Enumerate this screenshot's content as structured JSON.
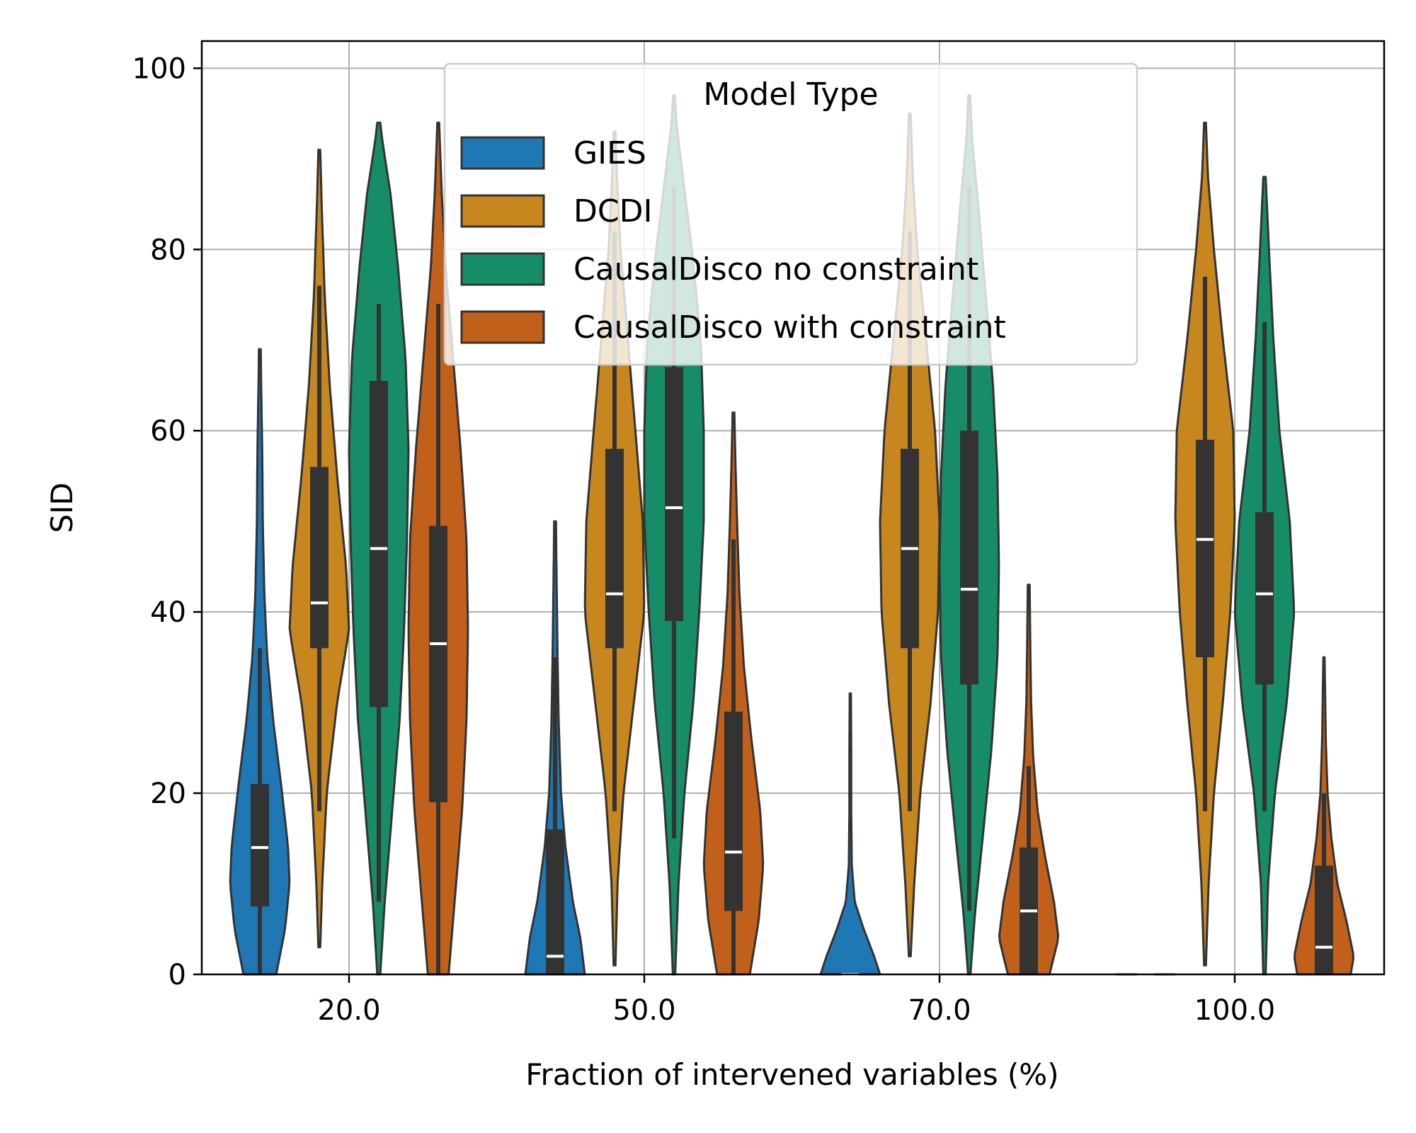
{
  "chart_data": {
    "type": "violin",
    "title": "",
    "xlabel": "Fraction of intervened variables (%)",
    "ylabel": "SID",
    "ylim": [
      0,
      103
    ],
    "yticks": [
      0,
      20,
      40,
      60,
      80,
      100
    ],
    "ytick_labels": [
      "0",
      "20",
      "40",
      "60",
      "80",
      "100"
    ],
    "categories": [
      "20.0",
      "50.0",
      "70.0",
      "100.0"
    ],
    "grid": true,
    "legend": {
      "title": "Model Type",
      "placement": "top-center",
      "entries": [
        "GIES",
        "DCDI",
        "CausalDisco no constraint",
        "CausalDisco with constraint"
      ]
    },
    "series": [
      {
        "name": "GIES",
        "color": "#1f77b4",
        "violins": [
          {
            "category": "20.0",
            "min": 0,
            "max": 69,
            "q1": 7.5,
            "median": 14,
            "q3": 21,
            "wlo": 0,
            "whi": 36,
            "density": [
              [
                0,
                0.55
              ],
              [
                5,
                0.85
              ],
              [
                10,
                1.0
              ],
              [
                14,
                0.95
              ],
              [
                20,
                0.75
              ],
              [
                28,
                0.45
              ],
              [
                35,
                0.25
              ],
              [
                42,
                0.15
              ],
              [
                50,
                0.1
              ],
              [
                58,
                0.08
              ],
              [
                64,
                0.05
              ],
              [
                69,
                0.03
              ]
            ]
          },
          {
            "category": "50.0",
            "min": 0,
            "max": 50,
            "q1": 0,
            "median": 2,
            "q3": 16,
            "wlo": 0,
            "whi": 35,
            "density": [
              [
                0,
                1.0
              ],
              [
                4,
                0.85
              ],
              [
                8,
                0.6
              ],
              [
                14,
                0.35
              ],
              [
                20,
                0.2
              ],
              [
                28,
                0.12
              ],
              [
                36,
                0.08
              ],
              [
                44,
                0.05
              ],
              [
                50,
                0.03
              ]
            ]
          },
          {
            "category": "70.0",
            "min": 0,
            "max": 31,
            "q1": 0,
            "median": 0,
            "q3": 0,
            "wlo": 0,
            "whi": 0,
            "density": [
              [
                0,
                1.0
              ],
              [
                2,
                0.8
              ],
              [
                5,
                0.45
              ],
              [
                8,
                0.15
              ],
              [
                12,
                0.05
              ],
              [
                18,
                0.03
              ],
              [
                25,
                0.03
              ],
              [
                31,
                0.02
              ]
            ]
          },
          {
            "category": "100.0",
            "min": 0,
            "max": 0,
            "q1": 0,
            "median": 0,
            "q3": 0,
            "wlo": 0,
            "whi": 0,
            "density": [
              [
                0,
                1.0
              ]
            ]
          }
        ]
      },
      {
        "name": "DCDI",
        "color": "#c8861e",
        "violins": [
          {
            "category": "20.0",
            "min": 3,
            "max": 91,
            "q1": 36,
            "median": 41,
            "q3": 56,
            "wlo": 18,
            "whi": 76,
            "density": [
              [
                3,
                0.03
              ],
              [
                10,
                0.1
              ],
              [
                20,
                0.25
              ],
              [
                30,
                0.6
              ],
              [
                38,
                1.0
              ],
              [
                45,
                0.9
              ],
              [
                55,
                0.6
              ],
              [
                65,
                0.35
              ],
              [
                75,
                0.18
              ],
              [
                85,
                0.08
              ],
              [
                91,
                0.03
              ]
            ]
          },
          {
            "category": "50.0",
            "min": 1,
            "max": 93,
            "q1": 36,
            "median": 42,
            "q3": 58,
            "wlo": 18,
            "whi": 82,
            "density": [
              [
                1,
                0.03
              ],
              [
                10,
                0.1
              ],
              [
                20,
                0.3
              ],
              [
                30,
                0.65
              ],
              [
                40,
                1.0
              ],
              [
                50,
                0.95
              ],
              [
                60,
                0.7
              ],
              [
                70,
                0.45
              ],
              [
                80,
                0.2
              ],
              [
                88,
                0.08
              ],
              [
                93,
                0.03
              ]
            ]
          },
          {
            "category": "70.0",
            "min": 2,
            "max": 95,
            "q1": 36,
            "median": 47,
            "q3": 58,
            "wlo": 18,
            "whi": 82,
            "density": [
              [
                2,
                0.03
              ],
              [
                10,
                0.15
              ],
              [
                20,
                0.35
              ],
              [
                30,
                0.7
              ],
              [
                40,
                0.95
              ],
              [
                50,
                1.0
              ],
              [
                60,
                0.85
              ],
              [
                70,
                0.55
              ],
              [
                80,
                0.25
              ],
              [
                88,
                0.1
              ],
              [
                95,
                0.03
              ]
            ]
          },
          {
            "category": "100.0",
            "min": 1,
            "max": 94,
            "q1": 35,
            "median": 48,
            "q3": 59,
            "wlo": 18,
            "whi": 77,
            "density": [
              [
                1,
                0.03
              ],
              [
                10,
                0.12
              ],
              [
                20,
                0.3
              ],
              [
                30,
                0.6
              ],
              [
                40,
                0.85
              ],
              [
                50,
                1.0
              ],
              [
                60,
                0.95
              ],
              [
                70,
                0.6
              ],
              [
                80,
                0.3
              ],
              [
                88,
                0.1
              ],
              [
                94,
                0.03
              ]
            ]
          }
        ]
      },
      {
        "name": "CausalDisco no constraint",
        "color": "#168c68",
        "violins": [
          {
            "category": "20.0",
            "min": 0,
            "max": 94,
            "q1": 29.5,
            "median": 47,
            "q3": 65.5,
            "wlo": 8,
            "whi": 74,
            "density": [
              [
                0,
                0.05
              ],
              [
                8,
                0.2
              ],
              [
                18,
                0.45
              ],
              [
                28,
                0.7
              ],
              [
                38,
                0.85
              ],
              [
                48,
                0.95
              ],
              [
                58,
                1.0
              ],
              [
                68,
                0.9
              ],
              [
                78,
                0.65
              ],
              [
                86,
                0.4
              ],
              [
                92,
                0.12
              ],
              [
                94,
                0.05
              ]
            ]
          },
          {
            "category": "50.0",
            "min": 0,
            "max": 97,
            "q1": 39,
            "median": 51.5,
            "q3": 67,
            "wlo": 15,
            "whi": 87,
            "density": [
              [
                0,
                0.04
              ],
              [
                10,
                0.15
              ],
              [
                20,
                0.35
              ],
              [
                30,
                0.65
              ],
              [
                40,
                0.85
              ],
              [
                50,
                1.0
              ],
              [
                60,
                1.0
              ],
              [
                70,
                0.9
              ],
              [
                80,
                0.6
              ],
              [
                88,
                0.3
              ],
              [
                94,
                0.08
              ],
              [
                97,
                0.03
              ]
            ]
          },
          {
            "category": "70.0",
            "min": 0,
            "max": 97,
            "q1": 32,
            "median": 42.5,
            "q3": 60,
            "wlo": 7,
            "whi": 87,
            "density": [
              [
                0,
                0.04
              ],
              [
                7,
                0.2
              ],
              [
                15,
                0.45
              ],
              [
                25,
                0.75
              ],
              [
                35,
                0.95
              ],
              [
                45,
                1.0
              ],
              [
                55,
                0.95
              ],
              [
                65,
                0.8
              ],
              [
                75,
                0.55
              ],
              [
                85,
                0.3
              ],
              [
                92,
                0.1
              ],
              [
                97,
                0.03
              ]
            ]
          },
          {
            "category": "100.0",
            "min": 0,
            "max": 88,
            "q1": 32,
            "median": 42,
            "q3": 51,
            "wlo": 18,
            "whi": 72,
            "density": [
              [
                0,
                0.04
              ],
              [
                10,
                0.12
              ],
              [
                20,
                0.35
              ],
              [
                30,
                0.75
              ],
              [
                40,
                1.0
              ],
              [
                50,
                0.85
              ],
              [
                60,
                0.5
              ],
              [
                70,
                0.3
              ],
              [
                80,
                0.15
              ],
              [
                88,
                0.04
              ]
            ]
          }
        ]
      },
      {
        "name": "CausalDisco with constraint",
        "color": "#c0601a",
        "violins": [
          {
            "category": "20.0",
            "min": 0,
            "max": 94,
            "q1": 19,
            "median": 36.5,
            "q3": 49.5,
            "wlo": 0,
            "whi": 74,
            "density": [
              [
                0,
                0.35
              ],
              [
                8,
                0.55
              ],
              [
                18,
                0.8
              ],
              [
                28,
                0.95
              ],
              [
                38,
                1.0
              ],
              [
                48,
                0.95
              ],
              [
                58,
                0.75
              ],
              [
                68,
                0.5
              ],
              [
                78,
                0.25
              ],
              [
                86,
                0.12
              ],
              [
                94,
                0.03
              ]
            ]
          },
          {
            "category": "50.0",
            "min": 0,
            "max": 62,
            "q1": 7,
            "median": 13.5,
            "q3": 29,
            "wlo": 0,
            "whi": 48,
            "density": [
              [
                0,
                0.55
              ],
              [
                6,
                0.85
              ],
              [
                12,
                1.0
              ],
              [
                18,
                0.9
              ],
              [
                26,
                0.6
              ],
              [
                34,
                0.35
              ],
              [
                42,
                0.2
              ],
              [
                50,
                0.12
              ],
              [
                56,
                0.07
              ],
              [
                62,
                0.03
              ]
            ]
          },
          {
            "category": "70.0",
            "min": 0,
            "max": 43,
            "q1": 0,
            "median": 7,
            "q3": 14,
            "wlo": 0,
            "whi": 23,
            "density": [
              [
                0,
                0.7
              ],
              [
                4,
                1.0
              ],
              [
                8,
                0.85
              ],
              [
                13,
                0.55
              ],
              [
                18,
                0.3
              ],
              [
                24,
                0.15
              ],
              [
                30,
                0.08
              ],
              [
                37,
                0.05
              ],
              [
                43,
                0.03
              ]
            ]
          },
          {
            "category": "100.0",
            "min": 0,
            "max": 35,
            "q1": 0,
            "median": 3,
            "q3": 12,
            "wlo": 0,
            "whi": 20,
            "density": [
              [
                0,
                0.9
              ],
              [
                2,
                1.0
              ],
              [
                6,
                0.75
              ],
              [
                10,
                0.45
              ],
              [
                15,
                0.25
              ],
              [
                20,
                0.12
              ],
              [
                26,
                0.06
              ],
              [
                31,
                0.04
              ],
              [
                35,
                0.02
              ]
            ]
          }
        ]
      }
    ]
  }
}
